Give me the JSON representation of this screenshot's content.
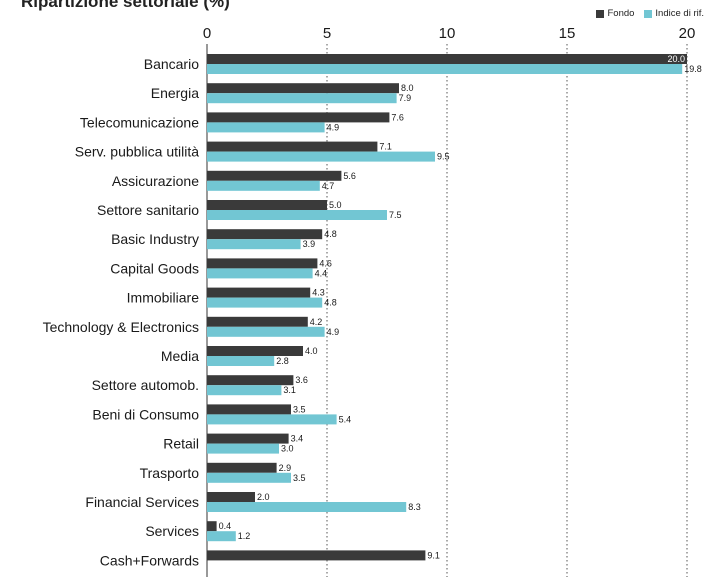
{
  "chart_data": {
    "type": "bar",
    "orientation": "horizontal",
    "title": "Ripartizione settoriale (%)",
    "xlim": [
      0,
      20
    ],
    "xticks": [
      "0",
      "5",
      "10",
      "15",
      "20"
    ],
    "grid": "vertical dotted",
    "legend_position": "top-right",
    "categories": [
      "Bancario",
      "Energia",
      "Telecomunicazione",
      "Serv. pubblica utilità",
      "Assicurazione",
      "Settore sanitario",
      "Basic Industry",
      "Capital Goods",
      "Immobiliare",
      "Technology & Electronics",
      "Media",
      "Settore automob.",
      "Beni di Consumo",
      "Retail",
      "Trasporto",
      "Financial Services",
      "Services",
      "Cash+Forwards"
    ],
    "series": [
      {
        "name": "Fondo",
        "color": "#3a3a3a",
        "values": [
          20.0,
          8.0,
          7.6,
          7.1,
          5.6,
          5.0,
          4.8,
          4.6,
          4.3,
          4.2,
          4.0,
          3.6,
          3.5,
          3.4,
          2.9,
          2.0,
          0.4,
          9.1
        ],
        "labels": [
          "20.0",
          "8.0",
          "7.6",
          "7.1",
          "5.6",
          "5.0",
          "4.8",
          "4.6",
          "4.3",
          "4.2",
          "4.0",
          "3.6",
          "3.5",
          "3.4",
          "2.9",
          "2.0",
          "0.4",
          "9.1"
        ]
      },
      {
        "name": "Indice di rif.",
        "color": "#72c6d3",
        "values": [
          19.8,
          7.9,
          4.9,
          9.5,
          4.7,
          7.5,
          3.9,
          4.4,
          4.8,
          4.9,
          2.8,
          3.1,
          5.4,
          3.0,
          3.5,
          8.3,
          1.2,
          null
        ],
        "labels": [
          "19.8",
          "7.9",
          "4.9",
          "9.5",
          "4.7",
          "7.5",
          "3.9",
          "4.4",
          "4.8",
          "4.9",
          "2.8",
          "3.1",
          "5.4",
          "3.0",
          "3.5",
          "8.3",
          "1.2",
          ""
        ]
      }
    ]
  }
}
